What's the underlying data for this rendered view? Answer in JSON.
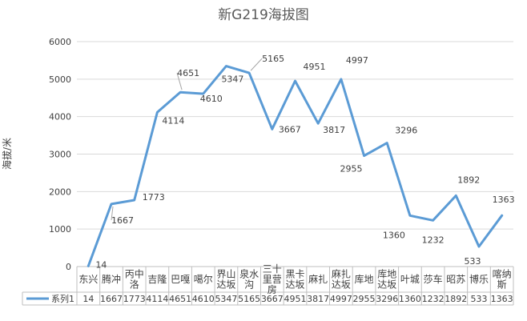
{
  "chart_data": {
    "type": "line",
    "title": "新G219海拔图",
    "ylabel": "海拔/米",
    "xlabel": "",
    "ylim": [
      0,
      6000
    ],
    "yticks": [
      0,
      1000,
      2000,
      3000,
      4000,
      5000,
      6000
    ],
    "grid": true,
    "legend": "data-table",
    "color": "#5B9BD5",
    "categories": [
      "东兴",
      "腾冲",
      "丙中洛",
      "吉隆",
      "巴嘎",
      "噶尔",
      "界山达坂",
      "泉水沟",
      "三十里营房",
      "黑卡达坂",
      "麻扎",
      "麻扎达坂",
      "库地",
      "库地达坂",
      "叶城",
      "莎车",
      "昭苏",
      "博乐",
      "喀纳斯"
    ],
    "series": [
      {
        "name": "系列1",
        "values": [
          14,
          1667,
          1773,
          4114,
          4651,
          4610,
          5347,
          5165,
          3667,
          4951,
          3817,
          4997,
          2955,
          3296,
          1360,
          1232,
          1892,
          533,
          1363
        ]
      }
    ]
  }
}
